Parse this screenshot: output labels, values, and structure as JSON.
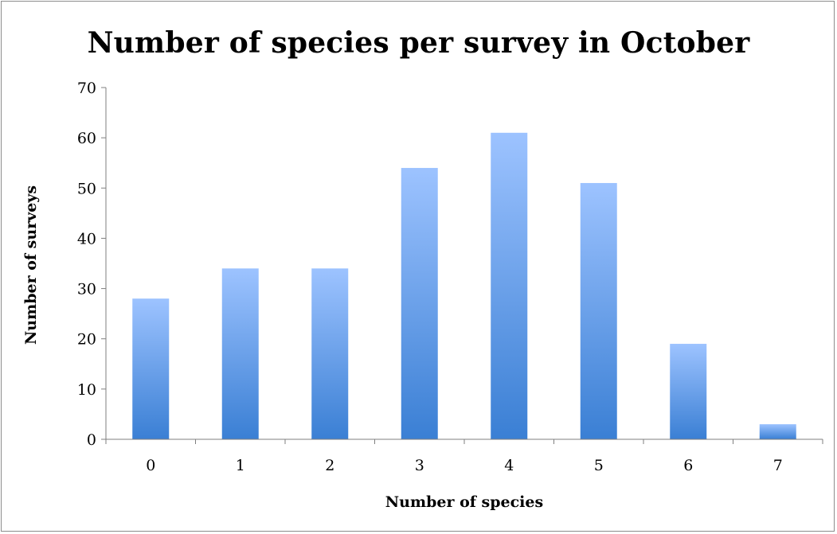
{
  "chart_data": {
    "type": "bar",
    "title": "Number of species per survey in October",
    "xlabel": "Number of species",
    "ylabel": "Number of surveys",
    "categories": [
      "0",
      "1",
      "2",
      "3",
      "4",
      "5",
      "6",
      "7"
    ],
    "values": [
      28,
      34,
      34,
      54,
      61,
      51,
      19,
      3
    ],
    "ylim": [
      0,
      70
    ],
    "yticks": [
      0,
      10,
      20,
      30,
      40,
      50,
      60,
      70
    ],
    "grid": false,
    "legend": "none",
    "bar_color_top": "#9dc3ff",
    "bar_color_bottom": "#3a7fd4"
  }
}
